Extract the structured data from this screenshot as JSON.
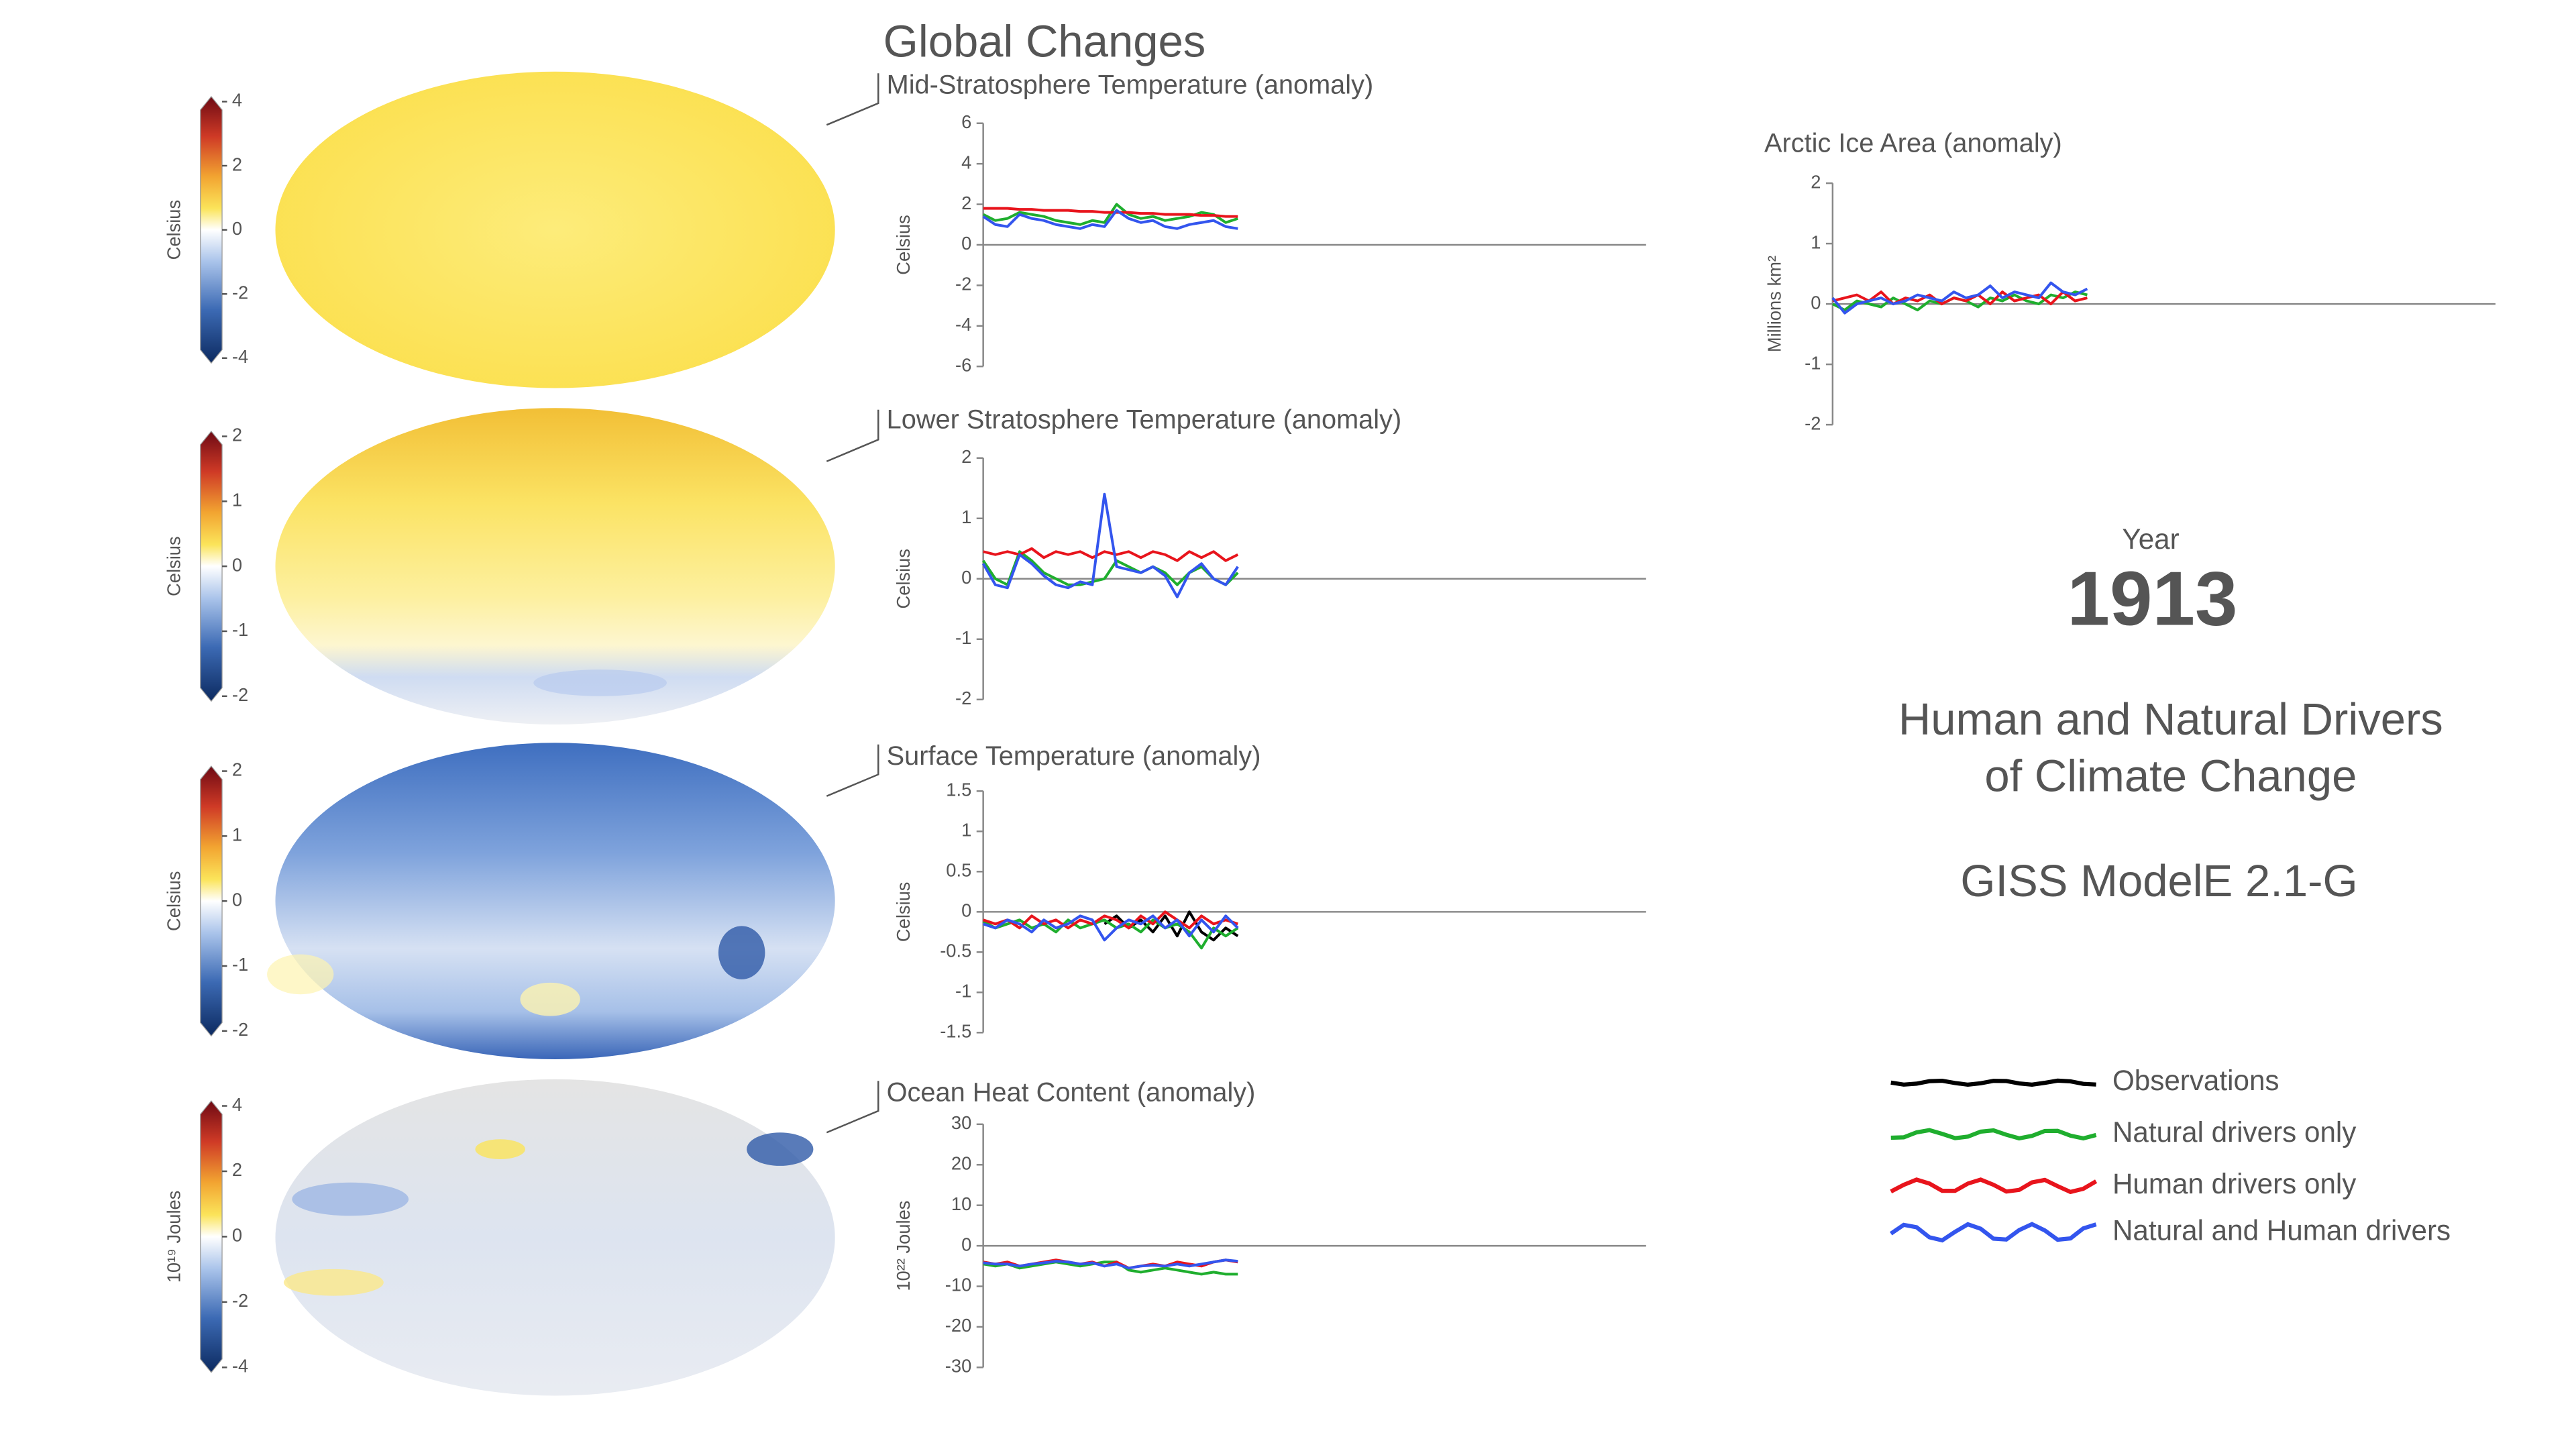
{
  "page": {
    "title": "Global Changes",
    "year_label": "Year",
    "year": 1913,
    "headline": [
      "Human and Natural Drivers",
      "of Climate Change"
    ],
    "model": "GISS ModelE 2.1-G"
  },
  "colorbars": [
    {
      "label": "Celsius",
      "lim": [
        -4,
        4
      ],
      "ticks": [
        4,
        2,
        0,
        -2,
        -4
      ]
    },
    {
      "label": "Celsius",
      "lim": [
        -2,
        2
      ],
      "ticks": [
        2,
        1,
        0,
        -1,
        -2
      ]
    },
    {
      "label": "Celsius",
      "lim": [
        -2,
        2
      ],
      "ticks": [
        2,
        1,
        0,
        -1,
        -2
      ]
    },
    {
      "label": "10¹⁹ Joules",
      "lim": [
        -4,
        4
      ],
      "ticks": [
        4,
        2,
        0,
        -2,
        -4
      ]
    }
  ],
  "chart_data": [
    {
      "type": "line",
      "title": "Mid-Stratosphere Temperature (anomaly)",
      "y_label": "Celsius",
      "x": [
        1850,
        1853,
        1856,
        1859,
        1862,
        1865,
        1868,
        1871,
        1874,
        1877,
        1880,
        1883,
        1886,
        1889,
        1892,
        1895,
        1898,
        1901,
        1904,
        1907,
        1910,
        1913
      ],
      "xlim": [
        1850,
        2014
      ],
      "ylim": [
        -6,
        6
      ],
      "yticks": [
        6,
        4,
        2,
        0,
        -2,
        -4,
        -6
      ],
      "series": [
        {
          "name": "Natural drivers only",
          "color": "#1fae2e",
          "values": [
            1.5,
            1.2,
            1.3,
            1.6,
            1.5,
            1.4,
            1.2,
            1.1,
            1.0,
            1.2,
            1.1,
            2.0,
            1.5,
            1.3,
            1.4,
            1.2,
            1.3,
            1.4,
            1.6,
            1.5,
            1.1,
            1.3
          ]
        },
        {
          "name": "Human drivers only",
          "color": "#e8141c",
          "values": [
            1.8,
            1.8,
            1.8,
            1.75,
            1.75,
            1.7,
            1.7,
            1.7,
            1.65,
            1.65,
            1.6,
            1.6,
            1.6,
            1.55,
            1.55,
            1.5,
            1.5,
            1.5,
            1.45,
            1.45,
            1.4,
            1.4
          ]
        },
        {
          "name": "Natural and Human drivers",
          "color": "#3355ee",
          "values": [
            1.4,
            1.0,
            0.9,
            1.5,
            1.3,
            1.2,
            1.0,
            0.9,
            0.8,
            1.0,
            0.9,
            1.7,
            1.3,
            1.1,
            1.2,
            0.9,
            0.8,
            1.0,
            1.1,
            1.2,
            0.9,
            0.8
          ]
        }
      ]
    },
    {
      "type": "line",
      "title": "Lower Stratosphere Temperature (anomaly)",
      "y_label": "Celsius",
      "x": [
        1850,
        1853,
        1856,
        1859,
        1862,
        1865,
        1868,
        1871,
        1874,
        1877,
        1880,
        1883,
        1886,
        1889,
        1892,
        1895,
        1898,
        1901,
        1904,
        1907,
        1910,
        1913
      ],
      "xlim": [
        1850,
        2014
      ],
      "ylim": [
        -2,
        2
      ],
      "yticks": [
        2,
        1,
        0,
        -1,
        -2
      ],
      "series": [
        {
          "name": "Natural drivers only",
          "color": "#1fae2e",
          "values": [
            0.3,
            0.0,
            -0.1,
            0.45,
            0.3,
            0.1,
            0.0,
            -0.1,
            -0.1,
            -0.05,
            0.0,
            0.3,
            0.2,
            0.1,
            0.2,
            0.1,
            -0.1,
            0.1,
            0.2,
            0.0,
            -0.1,
            0.1
          ]
        },
        {
          "name": "Human drivers only",
          "color": "#e8141c",
          "values": [
            0.45,
            0.4,
            0.45,
            0.4,
            0.5,
            0.35,
            0.45,
            0.4,
            0.45,
            0.35,
            0.45,
            0.4,
            0.45,
            0.35,
            0.45,
            0.4,
            0.3,
            0.45,
            0.35,
            0.45,
            0.3,
            0.4
          ]
        },
        {
          "name": "Natural and Human drivers",
          "color": "#3355ee",
          "values": [
            0.25,
            -0.1,
            -0.15,
            0.4,
            0.25,
            0.05,
            -0.1,
            -0.15,
            -0.05,
            -0.1,
            1.4,
            0.2,
            0.15,
            0.1,
            0.2,
            0.05,
            -0.3,
            0.1,
            0.25,
            0.0,
            -0.1,
            0.2
          ]
        }
      ]
    },
    {
      "type": "line",
      "title": "Surface Temperature (anomaly)",
      "y_label": "Celsius",
      "x": [
        1850,
        1853,
        1856,
        1859,
        1862,
        1865,
        1868,
        1871,
        1874,
        1877,
        1880,
        1883,
        1886,
        1889,
        1892,
        1895,
        1898,
        1901,
        1904,
        1907,
        1910,
        1913
      ],
      "xlim": [
        1850,
        2014
      ],
      "ylim": [
        -1.5,
        1.5
      ],
      "yticks": [
        1.5,
        1,
        0.5,
        0,
        -0.5,
        -1,
        -1.5
      ],
      "series": [
        {
          "name": "Observations",
          "color": "#000000",
          "values": [
            null,
            null,
            null,
            null,
            null,
            null,
            null,
            null,
            null,
            null,
            -0.15,
            -0.05,
            -0.2,
            -0.1,
            -0.25,
            -0.05,
            -0.3,
            0.0,
            -0.25,
            -0.35,
            -0.2,
            -0.3
          ]
        },
        {
          "name": "Natural drivers only",
          "color": "#1fae2e",
          "values": [
            -0.12,
            -0.2,
            -0.15,
            -0.1,
            -0.2,
            -0.15,
            -0.25,
            -0.1,
            -0.2,
            -0.15,
            -0.1,
            -0.2,
            -0.15,
            -0.25,
            -0.1,
            -0.2,
            -0.15,
            -0.25,
            -0.45,
            -0.2,
            -0.3,
            -0.2
          ]
        },
        {
          "name": "Human drivers only",
          "color": "#e8141c",
          "values": [
            -0.1,
            -0.15,
            -0.1,
            -0.2,
            -0.05,
            -0.15,
            -0.1,
            -0.2,
            -0.1,
            -0.15,
            -0.05,
            -0.1,
            -0.2,
            -0.05,
            -0.15,
            0.0,
            -0.1,
            -0.2,
            -0.05,
            -0.15,
            -0.1,
            -0.15
          ]
        },
        {
          "name": "Natural and Human drivers",
          "color": "#3355ee",
          "values": [
            -0.15,
            -0.2,
            -0.1,
            -0.15,
            -0.25,
            -0.1,
            -0.2,
            -0.15,
            -0.05,
            -0.1,
            -0.35,
            -0.2,
            -0.1,
            -0.15,
            -0.05,
            -0.2,
            -0.1,
            -0.3,
            -0.1,
            -0.25,
            -0.05,
            -0.2
          ]
        }
      ]
    },
    {
      "type": "line",
      "title": "Ocean Heat Content (anomaly)",
      "y_label": "10²² Joules",
      "x": [
        1850,
        1853,
        1856,
        1859,
        1862,
        1865,
        1868,
        1871,
        1874,
        1877,
        1880,
        1883,
        1886,
        1889,
        1892,
        1895,
        1898,
        1901,
        1904,
        1907,
        1910,
        1913
      ],
      "xlim": [
        1850,
        2014
      ],
      "ylim": [
        -30,
        30
      ],
      "yticks": [
        30,
        20,
        10,
        0,
        -10,
        -20,
        -30
      ],
      "series": [
        {
          "name": "Natural drivers only",
          "color": "#1fae2e",
          "values": [
            -4.5,
            -5,
            -4.5,
            -5.5,
            -5,
            -4.5,
            -4,
            -4.5,
            -5,
            -4.5,
            -4,
            -4,
            -6,
            -6.5,
            -6,
            -5.5,
            -6,
            -6.5,
            -7,
            -6.5,
            -7,
            -7
          ]
        },
        {
          "name": "Human drivers only",
          "color": "#e8141c",
          "values": [
            -4,
            -4.5,
            -4,
            -5,
            -4.5,
            -4,
            -3.5,
            -4,
            -4.5,
            -4,
            -5,
            -4,
            -5.5,
            -5,
            -4.5,
            -5,
            -4,
            -4.5,
            -5,
            -4,
            -3.5,
            -4
          ]
        },
        {
          "name": "Natural and Human drivers",
          "color": "#3355ee",
          "values": [
            -4.2,
            -4.5,
            -4.5,
            -5,
            -4.5,
            -4.2,
            -3.8,
            -4,
            -4.5,
            -4.2,
            -5,
            -4.5,
            -5.5,
            -5,
            -4.8,
            -5,
            -4.5,
            -5,
            -4.5,
            -4,
            -3.5,
            -3.8
          ]
        }
      ]
    },
    {
      "type": "line",
      "title": "Arctic Ice Area (anomaly)",
      "y_label": "Millions km²",
      "x": [
        1850,
        1853,
        1856,
        1859,
        1862,
        1865,
        1868,
        1871,
        1874,
        1877,
        1880,
        1883,
        1886,
        1889,
        1892,
        1895,
        1898,
        1901,
        1904,
        1907,
        1910,
        1913
      ],
      "xlim": [
        1850,
        2014
      ],
      "ylim": [
        -2,
        2
      ],
      "yticks": [
        2,
        1,
        0,
        -1,
        -2
      ],
      "series": [
        {
          "name": "Natural drivers only",
          "color": "#1fae2e",
          "values": [
            0.0,
            -0.1,
            0.05,
            0.0,
            -0.05,
            0.1,
            0.0,
            -0.1,
            0.05,
            0.0,
            0.1,
            0.05,
            -0.05,
            0.1,
            0.05,
            0.15,
            0.05,
            0.0,
            0.15,
            0.1,
            0.2,
            0.15
          ]
        },
        {
          "name": "Human drivers only",
          "color": "#e8141c",
          "values": [
            0.05,
            0.1,
            0.15,
            0.05,
            0.2,
            0.0,
            0.1,
            0.05,
            0.15,
            0.0,
            0.1,
            0.05,
            0.15,
            0.0,
            0.2,
            0.05,
            0.1,
            0.15,
            0.0,
            0.2,
            0.05,
            0.1
          ]
        },
        {
          "name": "Natural and Human drivers",
          "color": "#3355ee",
          "values": [
            0.1,
            -0.15,
            0.0,
            0.05,
            0.1,
            0.0,
            0.05,
            0.15,
            0.1,
            0.05,
            0.2,
            0.1,
            0.15,
            0.3,
            0.1,
            0.2,
            0.15,
            0.1,
            0.35,
            0.2,
            0.15,
            0.25
          ]
        }
      ]
    }
  ]
}
